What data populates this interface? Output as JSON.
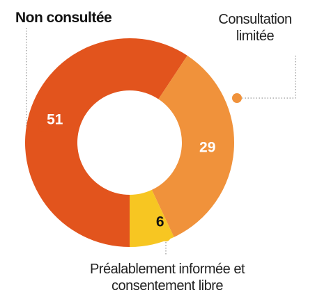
{
  "chart_data": {
    "type": "donut",
    "categories": [
      "Non consultée",
      "Consultation limitée",
      "Préalablement informée et consentement libre"
    ],
    "values": [
      51,
      29,
      6
    ],
    "colors": [
      "#e2541d",
      "#f0923b",
      "#f7c622"
    ]
  }
}
